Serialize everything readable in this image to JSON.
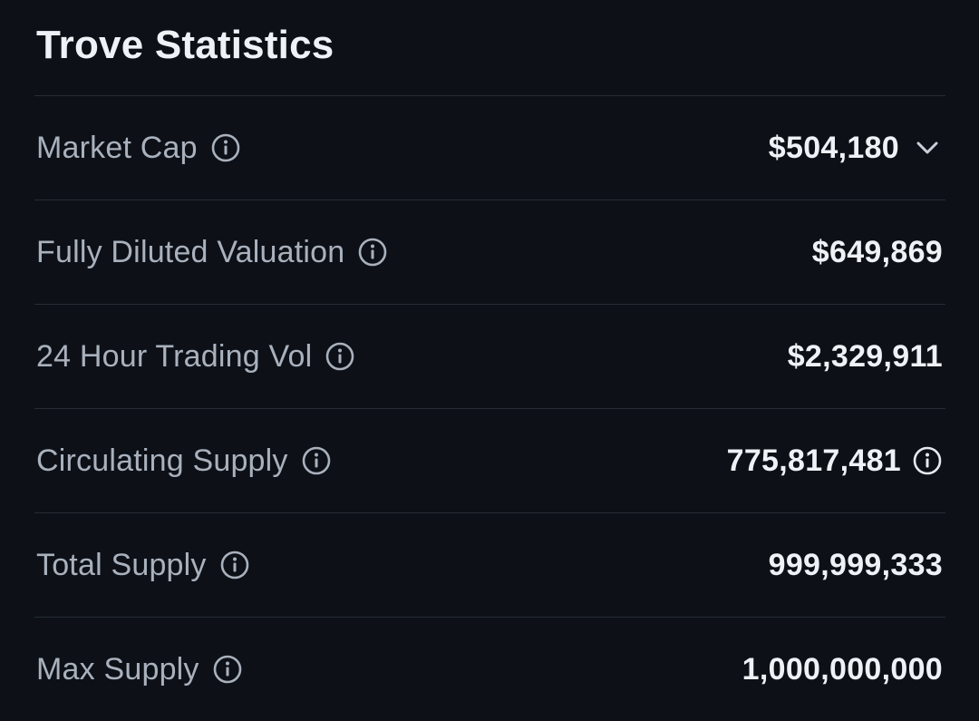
{
  "panel": {
    "title": "Trove Statistics"
  },
  "rows": [
    {
      "label": "Market Cap",
      "value": "$504,180"
    },
    {
      "label": "Fully Diluted Valuation",
      "value": "$649,869"
    },
    {
      "label": "24 Hour Trading Vol",
      "value": "$2,329,911"
    },
    {
      "label": "Circulating Supply",
      "value": "775,817,481"
    },
    {
      "label": "Total Supply",
      "value": "999,999,333"
    },
    {
      "label": "Max Supply",
      "value": "1,000,000,000"
    }
  ],
  "icons": {
    "info": "info-icon",
    "expand": "chevron-down-icon"
  },
  "colors": {
    "background": "#0d1117",
    "label": "#a9b1bd",
    "value": "#eef1f5",
    "divider": "#262c35"
  }
}
